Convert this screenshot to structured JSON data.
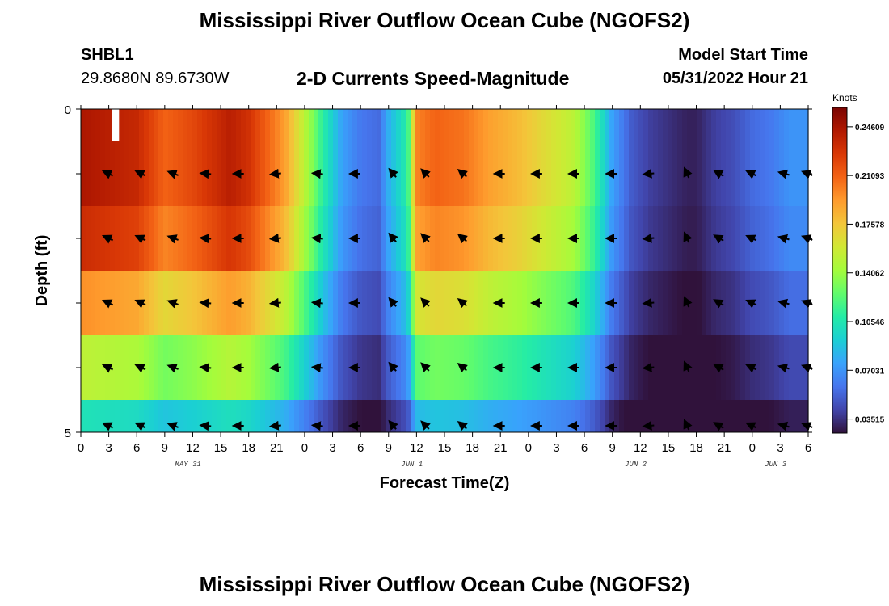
{
  "header": {
    "title": "Mississippi River Outflow Ocean Cube (NGOFS2)",
    "station": "SHBL1",
    "coords": "29.8680N  89.6730W",
    "subtitle": "2-D Currents Speed-Magnitude",
    "model_start_label": "Model Start Time",
    "model_start_value": "05/31/2022 Hour 21"
  },
  "footer": {
    "title": "Mississippi River Outflow Ocean Cube (NGOFS2)"
  },
  "colors": {
    "colormap": [
      "#30123b",
      "#4145ab",
      "#4675ed",
      "#39a2fc",
      "#1bcfd4",
      "#24eca6",
      "#61fc6c",
      "#a4fc3b",
      "#d1e834",
      "#f3c63a",
      "#fe9b2d",
      "#f36315",
      "#d93806",
      "#b11901",
      "#7a0402"
    ]
  },
  "chart_data": {
    "type": "heatmap",
    "title": "2-D Currents Speed-Magnitude",
    "xlabel": "Forecast Time(Z)",
    "ylabel": "Depth (ft)",
    "x_range_hours": [
      0,
      78
    ],
    "ylim": [
      0,
      5
    ],
    "y_ticks": [
      "0",
      "",
      "",
      "",
      "",
      "5"
    ],
    "x_tick_labels": [
      "0",
      "3",
      "6",
      "9",
      "12",
      "15",
      "18",
      "21",
      "0",
      "3",
      "6",
      "9",
      "12",
      "15",
      "18",
      "21",
      "0",
      "3",
      "6",
      "9",
      "12",
      "15",
      "18",
      "21",
      "0",
      "3",
      "6"
    ],
    "day_labels": [
      {
        "label": "MAY 31",
        "hour": 11.5
      },
      {
        "label": "JUN 1",
        "hour": 35.5
      },
      {
        "label": "JUN 2",
        "hour": 59.5
      },
      {
        "label": "JUN 3",
        "hour": 74.5
      }
    ],
    "colorbar": {
      "units": "Knots",
      "ticks": [
        "0.24609",
        "0.21093",
        "0.17578",
        "0.14062",
        "0.10546",
        "0.07031",
        "0.03515"
      ],
      "range": [
        0.025,
        0.26
      ]
    },
    "depth_layers": [
      0,
      1,
      2,
      3,
      4,
      5
    ],
    "time_profile": {
      "hours": [
        0,
        3,
        6,
        9,
        12,
        14,
        16,
        18,
        20,
        22,
        24,
        26,
        28,
        30,
        32,
        33,
        35,
        36,
        38,
        41,
        44,
        47,
        50,
        53,
        55,
        57,
        59,
        61,
        63,
        65,
        66,
        68,
        70,
        72,
        74,
        76,
        78
      ],
      "values": [
        0.245,
        0.24,
        0.235,
        0.21,
        0.22,
        0.23,
        0.24,
        0.23,
        0.21,
        0.19,
        0.15,
        0.11,
        0.075,
        0.06,
        0.055,
        0.08,
        0.11,
        0.2,
        0.21,
        0.205,
        0.19,
        0.18,
        0.165,
        0.15,
        0.12,
        0.075,
        0.05,
        0.04,
        0.035,
        0.03,
        0.03,
        0.04,
        0.045,
        0.055,
        0.06,
        0.07,
        0.07
      ]
    },
    "depth_factors": [
      1.0,
      1.0,
      0.95,
      0.8,
      0.62,
      0.42
    ],
    "arrow_hours": [
      3,
      6.5,
      10,
      13.5,
      17,
      21,
      25.5,
      29.5,
      33.5,
      37,
      41,
      45,
      49,
      53,
      57,
      61,
      65,
      68.5,
      72,
      75.5,
      78
    ],
    "arrow_angles_deg": [
      155,
      155,
      160,
      175,
      180,
      185,
      175,
      180,
      130,
      135,
      140,
      180,
      180,
      180,
      180,
      185,
      115,
      150,
      155,
      165,
      160
    ]
  }
}
